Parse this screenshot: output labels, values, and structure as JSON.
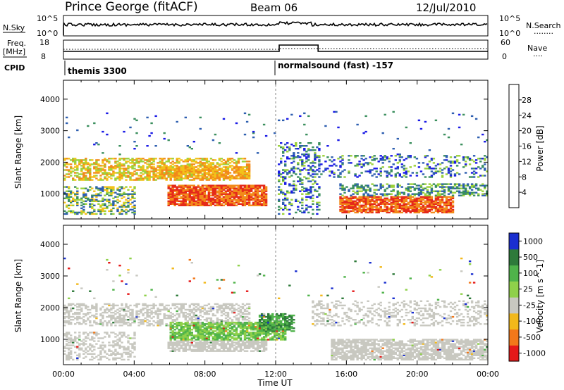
{
  "header": {
    "station": "Prince George (fitACF)",
    "beam": "Beam 06",
    "date": "12/Jul/2010"
  },
  "panel_labels": {
    "nsky": "N.Sky",
    "nsearch": "N.Search",
    "freq_top": "Freq.",
    "freq_unit": "[MHz]",
    "nave": "Nave",
    "cpid": "CPID",
    "nsky_tick_hi": "10^5",
    "nsky_tick_lo": "10^0",
    "nsearch_tick_hi": "10^5",
    "nsearch_tick_lo": "10^0",
    "freq_tick_hi": "18",
    "freq_tick_lo": "8",
    "nave_tick_hi": "60",
    "nave_tick_lo": "0",
    "dots_a": "........",
    "dots_b": "...."
  },
  "cpid": {
    "mode1": "themis 3300",
    "mode2": "normalsound (fast) -157"
  },
  "chart_data": [
    {
      "type": "heatmap",
      "title": "",
      "ylabel": "Slant Range [km]",
      "ylim": [
        200,
        4600
      ],
      "yticks": [
        "1000",
        "2000",
        "3000",
        "4000"
      ],
      "colorbar_label": "Power [dB]",
      "colorbar_ticks": [
        "4",
        "8",
        "12",
        "16",
        "20",
        "24",
        "28"
      ],
      "colorbar_colors": [
        "#1a1ae6",
        "#2e5fb0",
        "#3b8f5e",
        "#9bd13a",
        "#f2c21a",
        "#f28a1a",
        "#e52a1a"
      ],
      "notes": "Strong echoes (>24 dB) near 600-1200 km from 06:00-11:30 UT and 16:00-22:00 UT"
    },
    {
      "type": "heatmap",
      "title": "",
      "xlabel": "Time UT",
      "ylabel": "Slant Range [km]",
      "ylim": [
        200,
        4600
      ],
      "xticks": [
        "00:00",
        "04:00",
        "08:00",
        "12:00",
        "16:00",
        "20:00",
        "00:00"
      ],
      "yticks": [
        "1000",
        "2000",
        "3000",
        "4000"
      ],
      "colorbar_label": "Velocity [m s^-1]",
      "colorbar_ticks": [
        "1000",
        "500",
        "100",
        "25",
        "-25",
        "-100",
        "-500",
        "-1000"
      ],
      "colorbar_colors": [
        "#1a2fd0",
        "#2e7a3a",
        "#4fb34a",
        "#8fd14a",
        "#c8c8c0",
        "#f2b81a",
        "#f2781a",
        "#e51a1a"
      ],
      "notes": "Mostly grey (|v|<25) ground-scatter bands; green (100-500) patch near 1000-1600 km from 07:00-13:00 UT"
    }
  ],
  "colors": {
    "axis": "#000000",
    "ground_scatter": "#c4c4bc"
  }
}
